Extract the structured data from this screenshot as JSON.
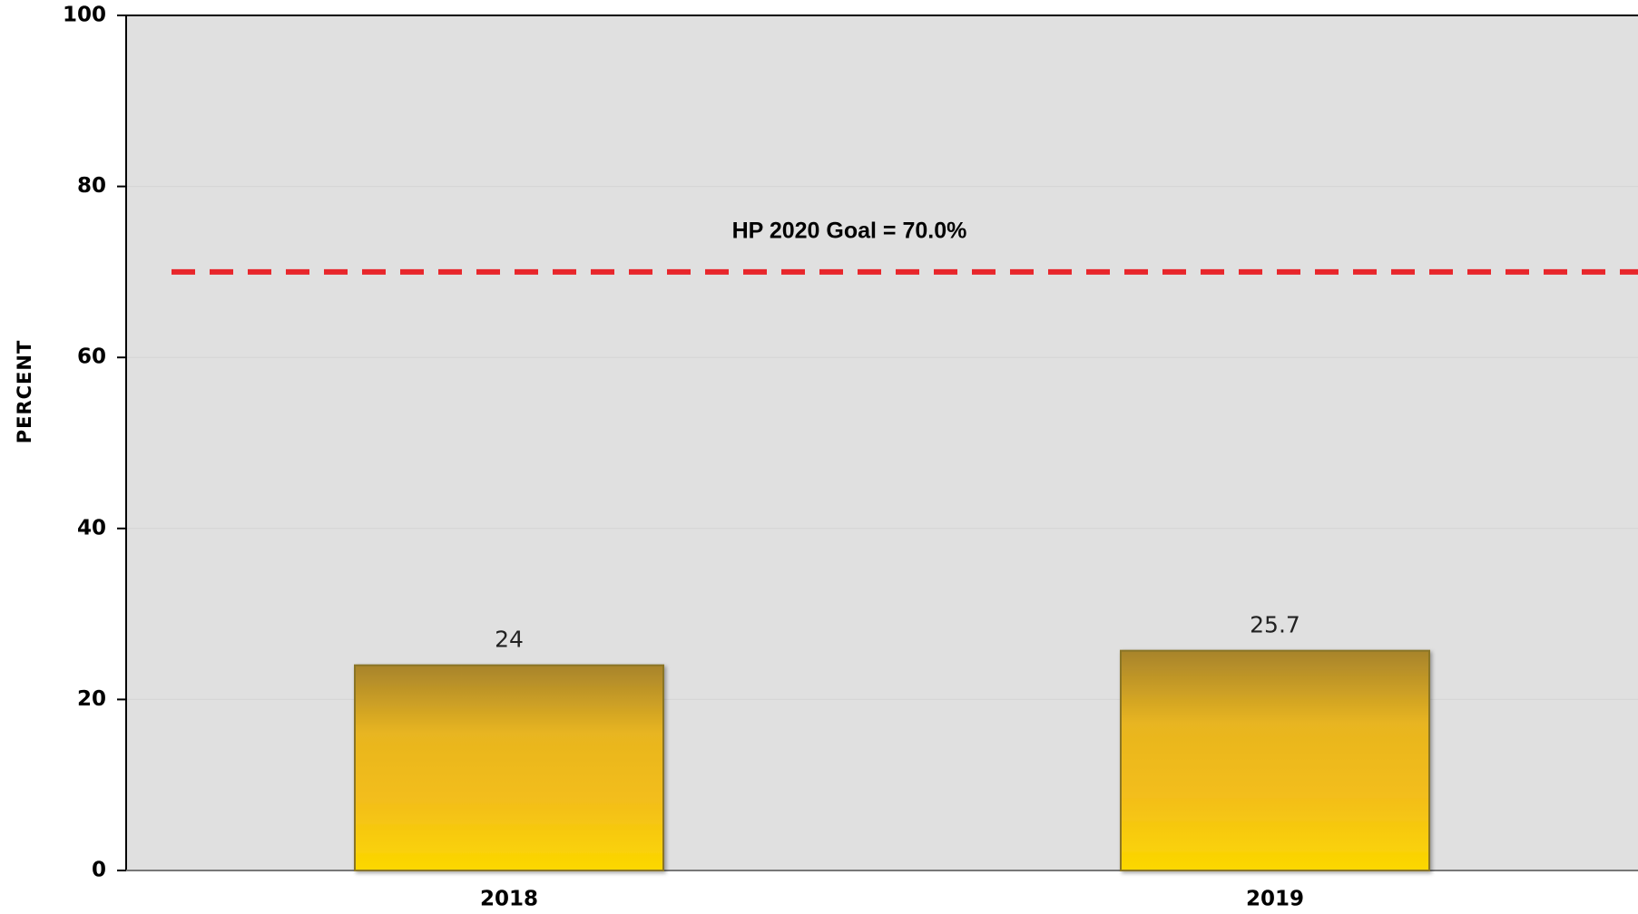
{
  "chart_data": {
    "type": "bar",
    "y_label": "PERCENT",
    "categories": [
      "2018",
      "2019"
    ],
    "values": [
      24,
      25.7
    ],
    "gradient": [
      "#a8842c",
      "#e8b520",
      "#f3be1a",
      "#fcd800"
    ],
    "ylim": [
      0,
      100
    ],
    "yticks": [
      0,
      20,
      40,
      60,
      80,
      100
    ],
    "grid": true,
    "goal": {
      "value": 70,
      "label": "HP 2020 Goal = 70.0%",
      "color": "#e8262b"
    }
  }
}
